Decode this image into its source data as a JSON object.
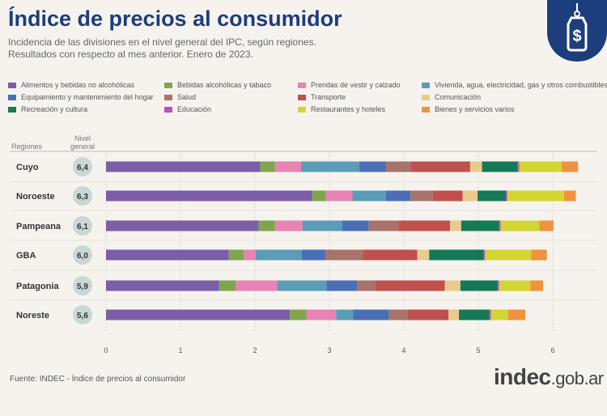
{
  "header": {
    "title": "Índice de precios al consumidor",
    "subtitle_line1": "Incidencia de las divisiones en el nivel general del IPC, según regiones.",
    "subtitle_line2": "Resultados con respecto al mes anterior. Enero de 2023."
  },
  "table_headers": {
    "regions": "Regiones",
    "level_line1": "Nivel",
    "level_line2": "general"
  },
  "footer": {
    "source": "Fuente: INDEC - Índice de precios al consumidor"
  },
  "brand": {
    "part1": "indec",
    "part2": ".gob.ar"
  },
  "logo": {
    "icon": "price-tag-dollar-icon",
    "symbol": "$"
  },
  "chart_data": {
    "type": "bar",
    "orientation": "horizontal",
    "stacked": true,
    "categories": [
      "Cuyo",
      "Noroeste",
      "Pampeana",
      "GBA",
      "Patagonia",
      "Noreste"
    ],
    "nivel_general": [
      "6,4",
      "6,3",
      "6,1",
      "6,0",
      "5,9",
      "5,6"
    ],
    "series": [
      {
        "name": "Alimentos y bebidas no alcohólicas",
        "color": "#7b5ea7",
        "values": [
          2.07,
          2.77,
          2.05,
          1.65,
          1.52,
          2.47
        ]
      },
      {
        "name": "Bebidas alcohólicas y tabaco",
        "color": "#7fa64c",
        "values": [
          0.2,
          0.18,
          0.22,
          0.2,
          0.22,
          0.22
        ]
      },
      {
        "name": "Prendas de vestir y calzado",
        "color": "#e784b3",
        "values": [
          0.35,
          0.36,
          0.37,
          0.16,
          0.56,
          0.4
        ]
      },
      {
        "name": "Vivienda, agua, electricidad, gas y otros combustibles",
        "color": "#5b9cb6",
        "values": [
          0.78,
          0.45,
          0.53,
          0.62,
          0.66,
          0.23
        ]
      },
      {
        "name": "Equipamiento y mantenimiento del hogar",
        "color": "#4a6fb5",
        "values": [
          0.36,
          0.33,
          0.36,
          0.32,
          0.41,
          0.48
        ]
      },
      {
        "name": "Salud",
        "color": "#a8736b",
        "values": [
          0.33,
          0.3,
          0.4,
          0.5,
          0.25,
          0.25
        ]
      },
      {
        "name": "Transporte",
        "color": "#c0504d",
        "values": [
          0.8,
          0.4,
          0.69,
          0.73,
          0.93,
          0.55
        ]
      },
      {
        "name": "Comunicación",
        "color": "#e8ca8c",
        "values": [
          0.16,
          0.2,
          0.15,
          0.16,
          0.21,
          0.14
        ]
      },
      {
        "name": "Recreación y cultura",
        "color": "#137a55",
        "values": [
          0.48,
          0.38,
          0.51,
          0.73,
          0.5,
          0.41
        ]
      },
      {
        "name": "Educación",
        "color": "#c04fc0",
        "values": [
          0.02,
          0.02,
          0.02,
          0.02,
          0.02,
          0.02
        ]
      },
      {
        "name": "Restaurantes y hoteles",
        "color": "#d3d632",
        "values": [
          0.57,
          0.76,
          0.52,
          0.62,
          0.42,
          0.23
        ]
      },
      {
        "name": "Bienes y servicios varios",
        "color": "#f0923e",
        "values": [
          0.22,
          0.16,
          0.19,
          0.21,
          0.17,
          0.23
        ]
      }
    ],
    "xlim": [
      0,
      6.5
    ],
    "xticks": [
      0,
      1,
      2,
      3,
      4,
      5,
      6
    ],
    "grid": true,
    "legend_position": "top"
  }
}
